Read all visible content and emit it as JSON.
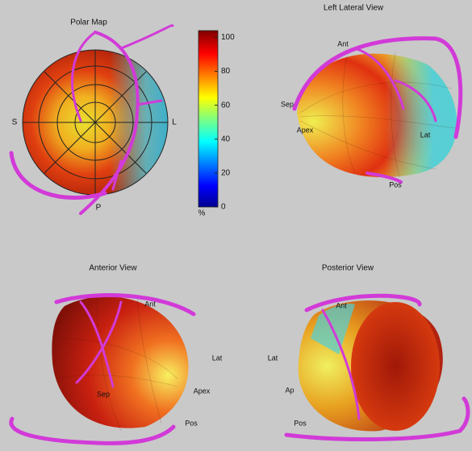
{
  "polar_map": {
    "title": "Polar Map",
    "labels": [
      "S",
      "L",
      "P"
    ]
  },
  "colorbar": {
    "lim": [
      0,
      104
    ],
    "ticks": [
      0,
      20,
      40,
      60,
      80,
      100
    ],
    "unit": "%"
  },
  "views": [
    {
      "title": "Left Lateral View",
      "labels": [
        "Ant",
        "Sep",
        "Apex",
        "Lat",
        "Pos"
      ]
    },
    {
      "title": "Anterior View",
      "labels": [
        "Ant",
        "Lat",
        "Apex",
        "Sep",
        "Pos"
      ]
    },
    {
      "title": "Posterior View",
      "labels": [
        "Ant",
        "Lat",
        "Ap",
        "Pos"
      ]
    }
  ]
}
